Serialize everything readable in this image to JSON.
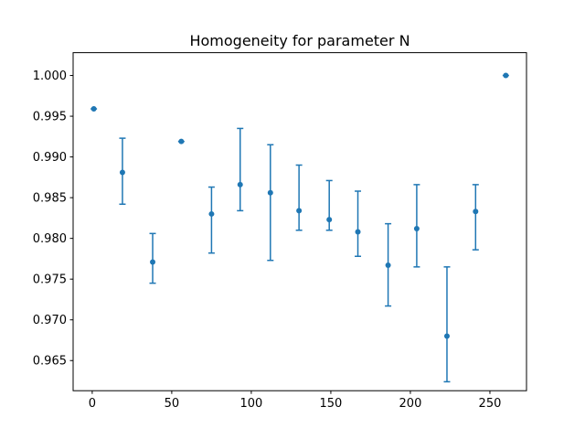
{
  "chart_data": {
    "type": "scatter",
    "title": "Homogeneity for parameter N",
    "xlabel": "",
    "ylabel": "",
    "xlim": [
      -12,
      273
    ],
    "ylim": [
      0.9613,
      1.0028
    ],
    "xticks": [
      0,
      50,
      100,
      150,
      200,
      250
    ],
    "xtick_labels": [
      "0",
      "50",
      "100",
      "150",
      "200",
      "250"
    ],
    "yticks": [
      0.965,
      0.97,
      0.975,
      0.98,
      0.985,
      0.99,
      0.995,
      1.0
    ],
    "ytick_labels": [
      "0.965",
      "0.970",
      "0.975",
      "0.980",
      "0.985",
      "0.990",
      "0.995",
      "1.000"
    ],
    "grid": false,
    "color": "#1f77b4",
    "points": [
      {
        "x": 1,
        "y": 0.9959,
        "low": 0.9959,
        "high": 0.9959
      },
      {
        "x": 19,
        "y": 0.9881,
        "low": 0.9842,
        "high": 0.9923
      },
      {
        "x": 38,
        "y": 0.9771,
        "low": 0.9745,
        "high": 0.9806
      },
      {
        "x": 56,
        "y": 0.9919,
        "low": 0.9919,
        "high": 0.9919
      },
      {
        "x": 75,
        "y": 0.983,
        "low": 0.9782,
        "high": 0.9863
      },
      {
        "x": 93,
        "y": 0.9866,
        "low": 0.9834,
        "high": 0.9935
      },
      {
        "x": 112,
        "y": 0.9856,
        "low": 0.9773,
        "high": 0.9915
      },
      {
        "x": 130,
        "y": 0.9834,
        "low": 0.981,
        "high": 0.989
      },
      {
        "x": 149,
        "y": 0.9823,
        "low": 0.981,
        "high": 0.9871
      },
      {
        "x": 167,
        "y": 0.9808,
        "low": 0.9778,
        "high": 0.9858
      },
      {
        "x": 186,
        "y": 0.9767,
        "low": 0.9717,
        "high": 0.9818
      },
      {
        "x": 204,
        "y": 0.9812,
        "low": 0.9765,
        "high": 0.9866
      },
      {
        "x": 223,
        "y": 0.968,
        "low": 0.9624,
        "high": 0.9765
      },
      {
        "x": 241,
        "y": 0.9833,
        "low": 0.9786,
        "high": 0.9866
      },
      {
        "x": 260,
        "y": 1.0,
        "low": 1.0,
        "high": 1.0
      }
    ]
  }
}
